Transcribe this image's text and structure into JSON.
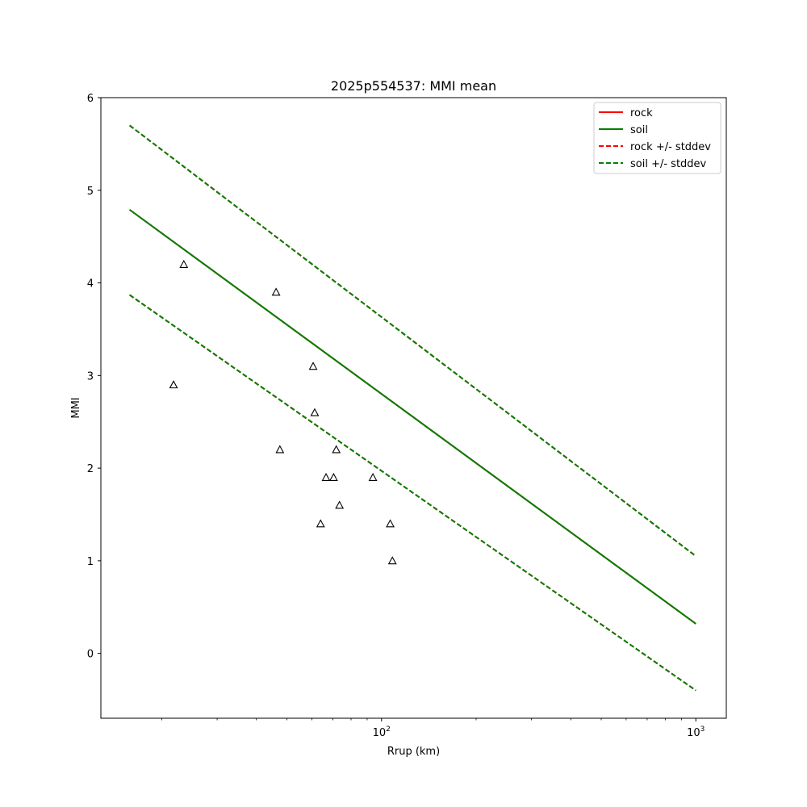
{
  "chart_data": {
    "type": "line",
    "title": "2025p554537: MMI mean",
    "xlabel": "Rrup (km)",
    "ylabel": "MMI",
    "xscale": "log",
    "xlim": [
      12.8,
      1250
    ],
    "ylim": [
      -0.7,
      6.0
    ],
    "yticks": [
      "0",
      "1",
      "2",
      "3",
      "4",
      "5",
      "6"
    ],
    "xtick_labels": [
      {
        "x": 100,
        "base": "10",
        "exp": "2"
      },
      {
        "x": 1000,
        "base": "10",
        "exp": "3"
      }
    ],
    "grid": false,
    "legend_position": "upper right",
    "series": [
      {
        "name": "rock",
        "style": "solid",
        "color": "#ff0000",
        "x": [
          15.8,
          1000
        ],
        "y": [
          4.79,
          0.32
        ]
      },
      {
        "name": "soil",
        "style": "solid",
        "color": "#008000",
        "x": [
          15.8,
          1000
        ],
        "y": [
          4.79,
          0.32
        ]
      },
      {
        "name": "rock +/- stddev",
        "style": "dashed",
        "color": "#ff0000",
        "x": [
          15.8,
          1000
        ],
        "y_upper": [
          5.7,
          1.05
        ],
        "y_lower": [
          3.87,
          -0.4
        ]
      },
      {
        "name": "soil +/- stddev",
        "style": "dashed",
        "color": "#008000",
        "x": [
          15.8,
          1000
        ],
        "y_upper": [
          5.7,
          1.05
        ],
        "y_lower": [
          3.87,
          -0.4
        ]
      }
    ],
    "observations": {
      "marker": "triangle",
      "points": [
        {
          "x": 23.5,
          "y": 4.2
        },
        {
          "x": 21.8,
          "y": 2.9
        },
        {
          "x": 46.2,
          "y": 3.9
        },
        {
          "x": 47.5,
          "y": 2.2
        },
        {
          "x": 60.6,
          "y": 3.1
        },
        {
          "x": 61.3,
          "y": 2.6
        },
        {
          "x": 64.0,
          "y": 1.4
        },
        {
          "x": 66.6,
          "y": 1.9
        },
        {
          "x": 70.4,
          "y": 1.9
        },
        {
          "x": 71.8,
          "y": 2.2
        },
        {
          "x": 73.5,
          "y": 1.6
        },
        {
          "x": 93.9,
          "y": 1.9
        },
        {
          "x": 106.6,
          "y": 1.4
        },
        {
          "x": 108.3,
          "y": 1.0
        }
      ]
    }
  }
}
